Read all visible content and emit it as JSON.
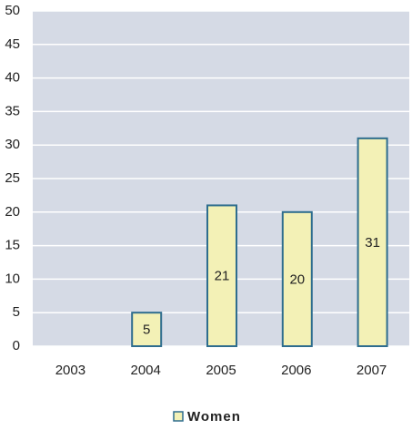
{
  "chart_data": {
    "type": "bar",
    "categories": [
      "2003",
      "2004",
      "2005",
      "2006",
      "2007"
    ],
    "series": [
      {
        "name": "Women",
        "color": "#f3f1b6",
        "values": [
          null,
          5,
          21,
          20,
          31
        ]
      }
    ],
    "ylim": [
      0,
      50
    ],
    "yticks": [
      0,
      5,
      10,
      15,
      20,
      25,
      30,
      35,
      40,
      45,
      50
    ],
    "grid": true
  }
}
